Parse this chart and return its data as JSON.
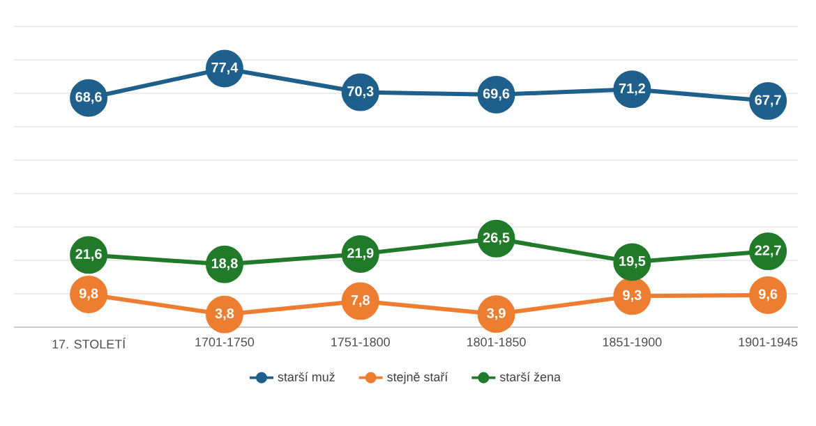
{
  "chart_data": {
    "type": "line",
    "categories": [
      "17. STOLETÍ",
      "1701-1750",
      "1751-1800",
      "1801-1850",
      "1851-1900",
      "1901-1945"
    ],
    "series": [
      {
        "name": "starší muž",
        "color": "#1f5f8b",
        "values": [
          68.6,
          77.4,
          70.3,
          69.6,
          71.2,
          67.7
        ],
        "value_labels": [
          "68,6",
          "77,4",
          "70,3",
          "69,6",
          "71,2",
          "67,7"
        ]
      },
      {
        "name": "stejně staří",
        "color": "#ed7d31",
        "values": [
          9.8,
          3.8,
          7.8,
          3.9,
          9.3,
          9.6
        ],
        "value_labels": [
          "9,8",
          "3,8",
          "7,8",
          "3,9",
          "9,3",
          "9,6"
        ]
      },
      {
        "name": "starší žena",
        "color": "#217a2a",
        "values": [
          21.6,
          18.8,
          21.9,
          26.5,
          19.5,
          22.7
        ],
        "value_labels": [
          "21,6",
          "18,8",
          "21,9",
          "26,5",
          "19,5",
          "22,7"
        ]
      }
    ],
    "ylim": [
      0,
      90
    ],
    "yticks": [
      {
        "value": 0,
        "label": null
      },
      {
        "value": 10,
        "label": null
      },
      {
        "value": 20,
        "label": null
      },
      {
        "value": 30,
        "label": null
      },
      {
        "value": 40,
        "label": null
      },
      {
        "value": 50,
        "label": null
      },
      {
        "value": 60,
        "label": null
      },
      {
        "value": 70,
        "label": null
      },
      {
        "value": 80,
        "label": null
      },
      {
        "value": 90,
        "label": null
      }
    ],
    "tick_labels": "x",
    "grid": "y",
    "legend": "bottom",
    "marker": "circle",
    "line_style": "solid"
  }
}
